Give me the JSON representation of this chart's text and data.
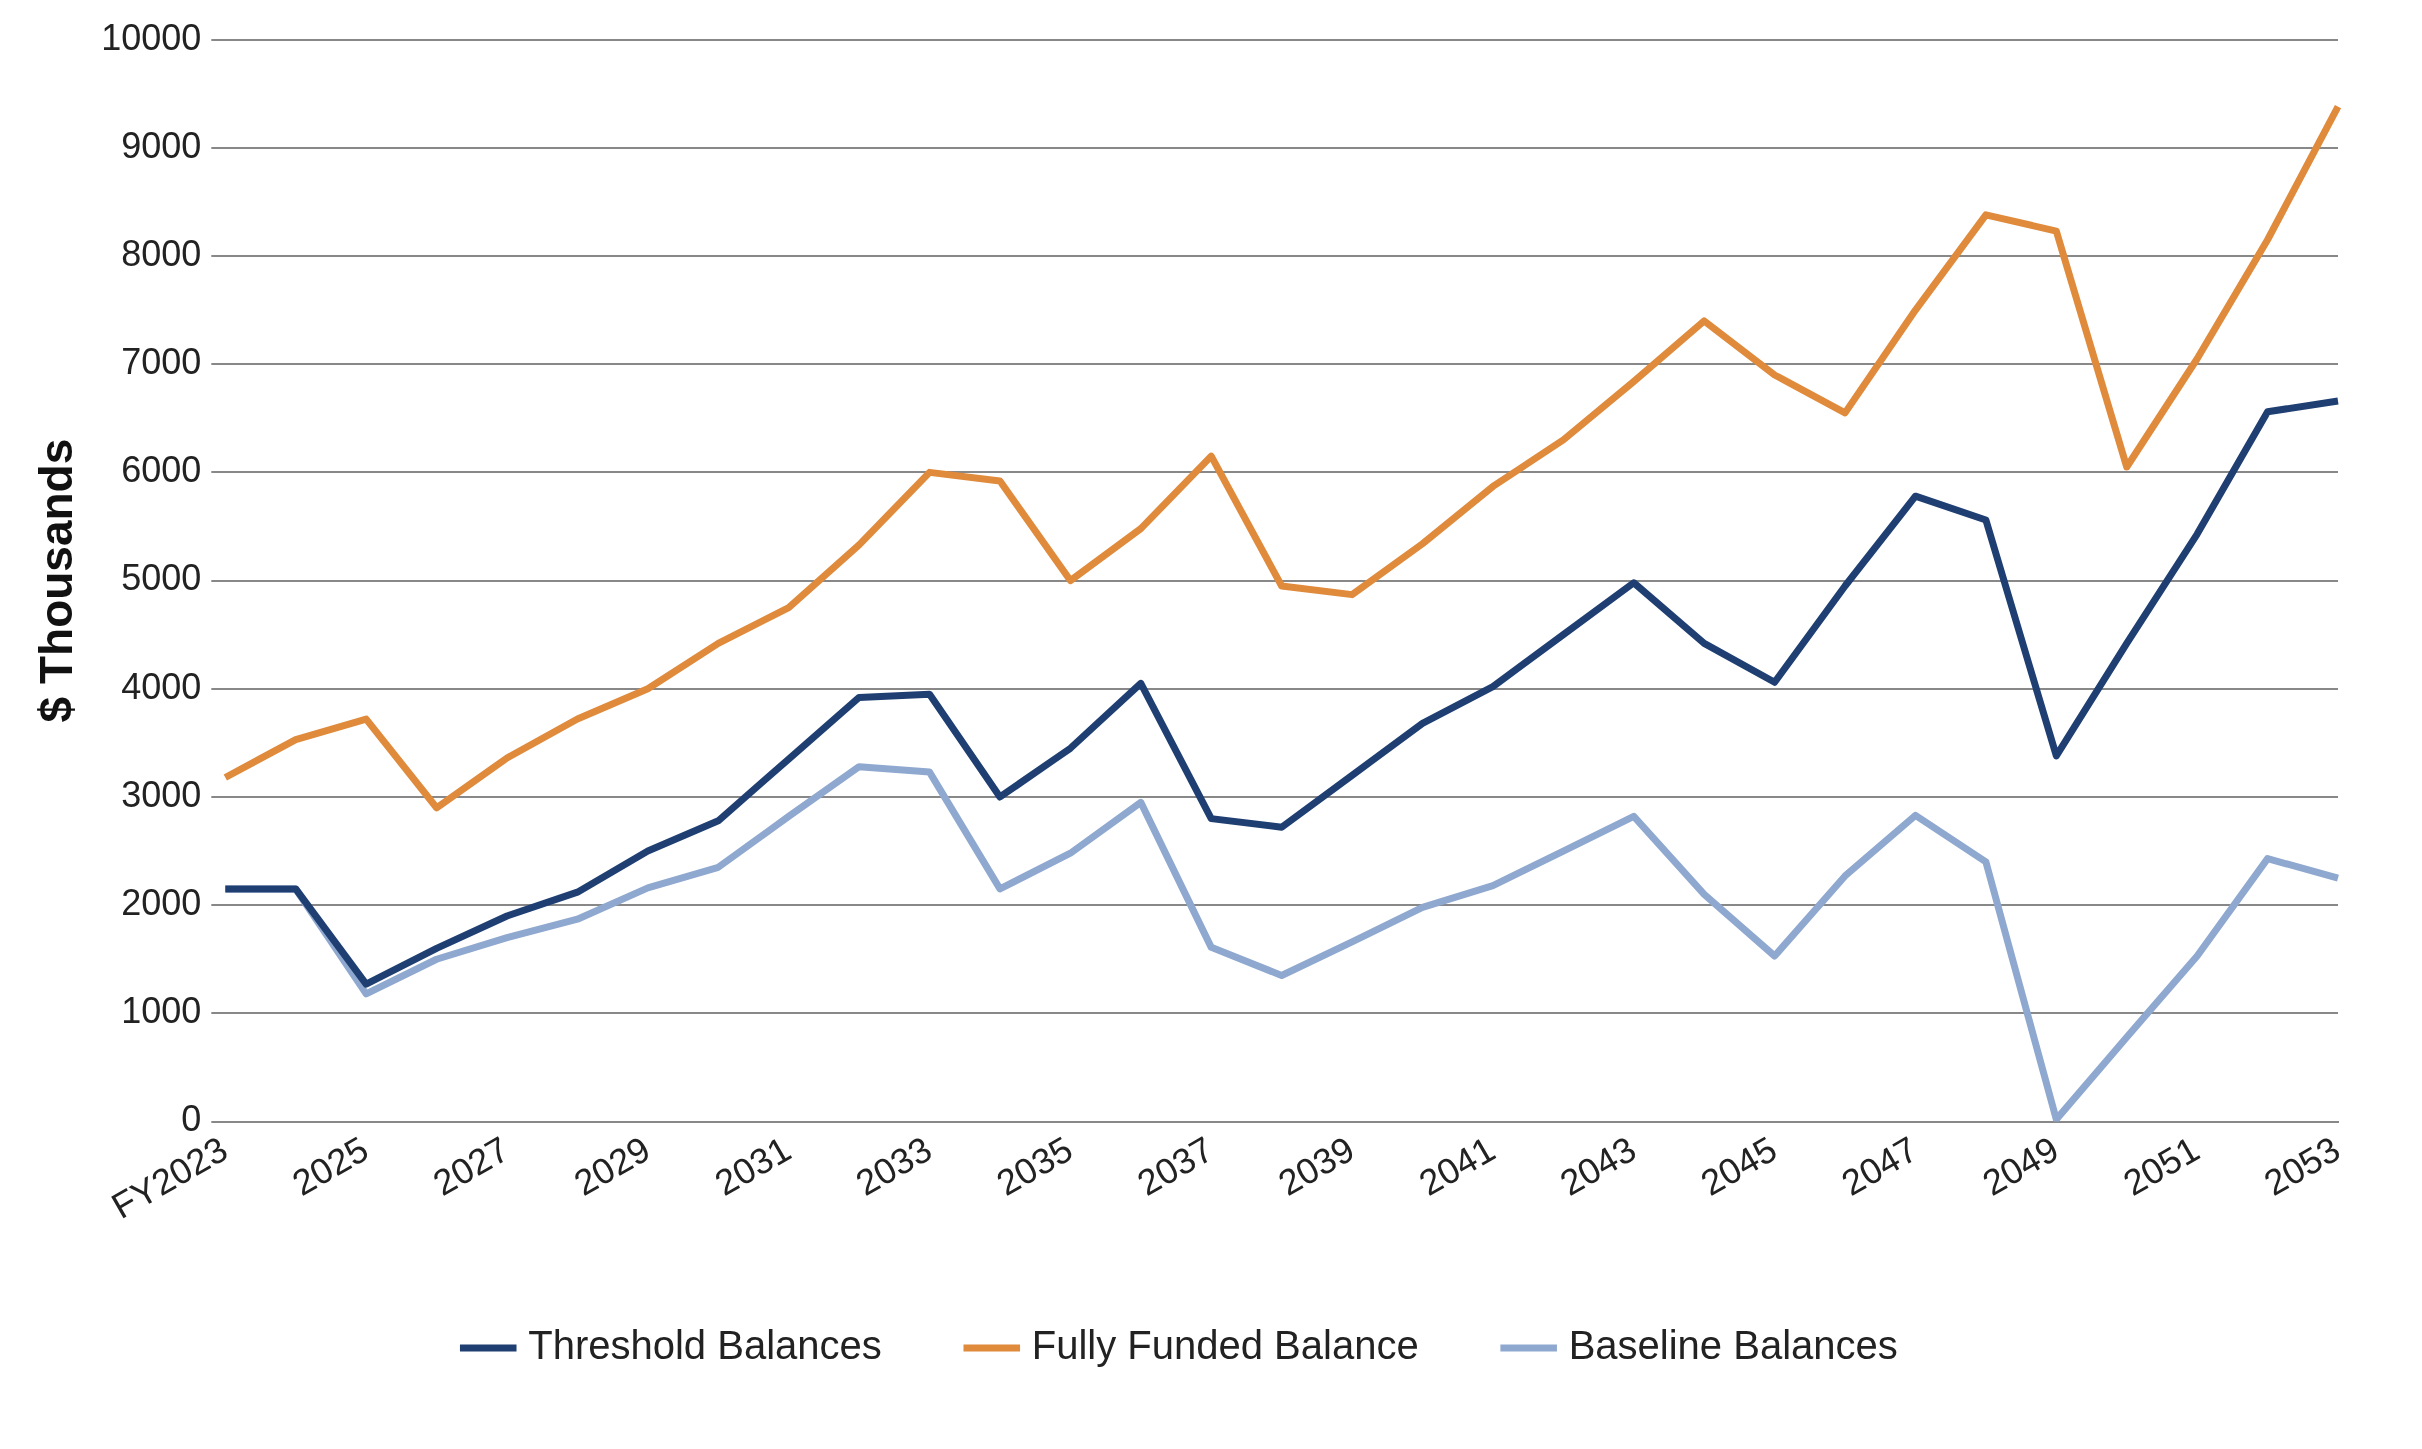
{
  "chart_data": {
    "type": "line",
    "ylabel": "$ Thousands",
    "categories": [
      "FY2023",
      null,
      "2025",
      null,
      "2027",
      null,
      "2029",
      null,
      "2031",
      null,
      "2033",
      null,
      "2035",
      null,
      "2037",
      null,
      "2039",
      null,
      "2041",
      null,
      "2043",
      null,
      "2045",
      null,
      "2047",
      null,
      "2049",
      null,
      "2051",
      null,
      "2053"
    ],
    "series": [
      {
        "name": "Threshold Balances",
        "color": "#1f3f73",
        "values": [
          2150,
          2150,
          1270,
          1600,
          1900,
          2120,
          2500,
          2780,
          3350,
          3920,
          3950,
          3000,
          3450,
          4050,
          2800,
          2720,
          3200,
          3680,
          4020,
          4500,
          4980,
          4420,
          4060,
          4950,
          5780,
          5560,
          3380,
          4420,
          5430,
          6560,
          6660
        ]
      },
      {
        "name": "Fully Funded Balance",
        "color": "#e08a3c",
        "values": [
          3180,
          3530,
          3720,
          2900,
          3360,
          3720,
          4000,
          4420,
          4750,
          5330,
          6000,
          5920,
          5000,
          5480,
          6150,
          4950,
          4870,
          5340,
          5870,
          6300,
          6840,
          7400,
          6900,
          6550,
          7500,
          8380,
          8230,
          6050,
          7050,
          8150,
          9380
        ]
      },
      {
        "name": "Baseline Balances",
        "color": "#8fa8cf",
        "values": [
          2150,
          2150,
          1180,
          1500,
          1700,
          1870,
          2160,
          2350,
          2820,
          3280,
          3230,
          2150,
          2480,
          2950,
          1610,
          1350,
          1660,
          1980,
          2180,
          2500,
          2820,
          2100,
          1530,
          2270,
          2830,
          2400,
          20,
          780,
          1530,
          2430,
          2250
        ]
      }
    ],
    "ylim": [
      0,
      10000
    ],
    "yticks": [
      0,
      1000,
      2000,
      3000,
      4000,
      5000,
      6000,
      7000,
      8000,
      9000,
      10000
    ],
    "grid": "y",
    "legend": "bottom",
    "marker": "none",
    "line_style": "solid"
  }
}
